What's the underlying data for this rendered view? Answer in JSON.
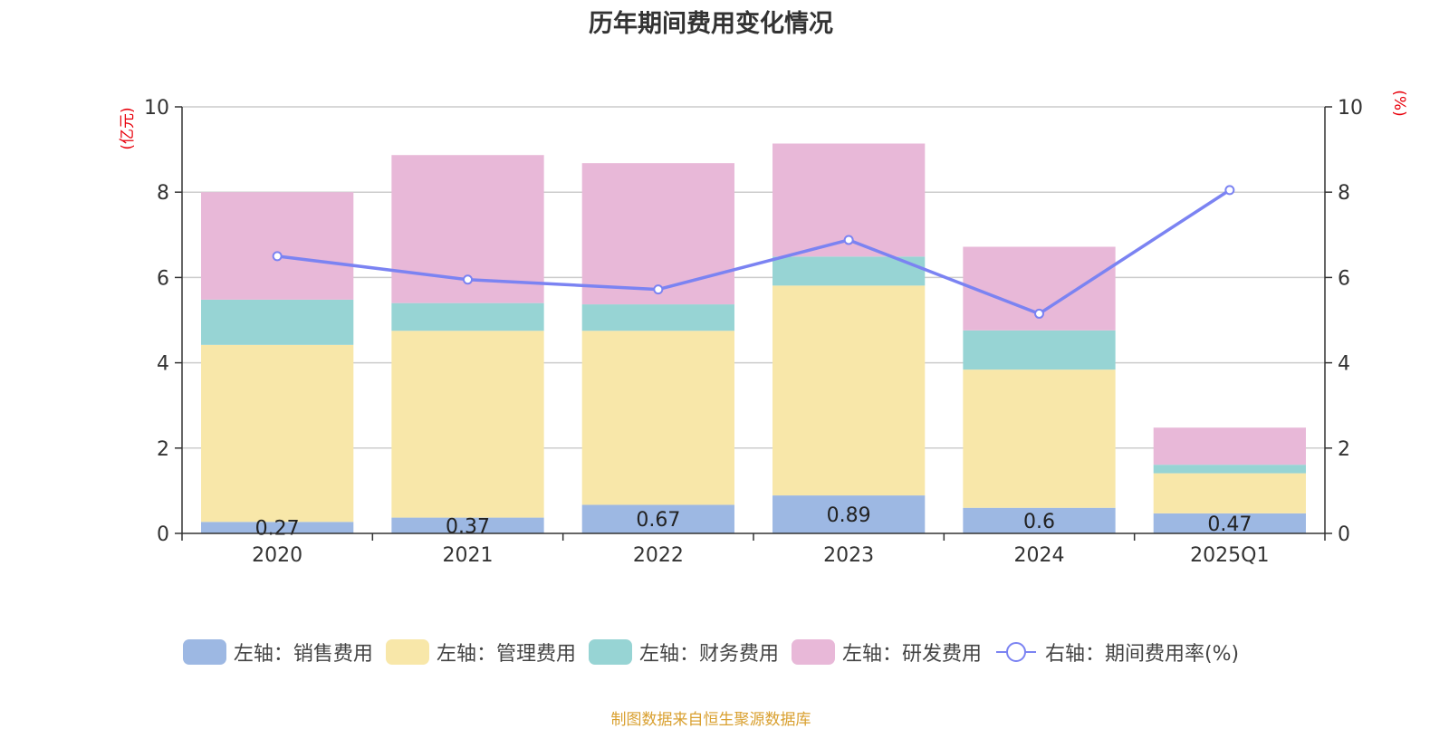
{
  "title": "历年期间费用变化情况",
  "source": "制图数据来自恒生聚源数据库",
  "colors": {
    "sales": "#9db8e3",
    "admin": "#f8e7a9",
    "finance": "#97d4d4",
    "rnd": "#e8b8d8",
    "rate": "#7b83f2",
    "axis_unit": "#e8000b"
  },
  "chart_data": {
    "type": "bar",
    "stacked": true,
    "categories": [
      "2020",
      "2021",
      "2022",
      "2023",
      "2024",
      "2025Q1"
    ],
    "left_axis": {
      "unit": "(亿元)",
      "ylim": [
        0,
        10
      ],
      "ticks": [
        0,
        2,
        4,
        6,
        8,
        10
      ]
    },
    "right_axis": {
      "unit": "(%)",
      "ylim": [
        0,
        10
      ],
      "ticks": [
        0,
        2,
        4,
        6,
        8,
        10
      ]
    },
    "series": [
      {
        "name": "左轴：销售费用",
        "key": "sales",
        "values": [
          0.27,
          0.37,
          0.67,
          0.89,
          0.6,
          0.47
        ],
        "data_labels": [
          "0.27",
          "0.37",
          "0.67",
          "0.89",
          "0.6",
          "0.47"
        ]
      },
      {
        "name": "左轴：管理费用",
        "key": "admin",
        "values": [
          4.15,
          4.38,
          4.08,
          4.92,
          3.24,
          0.94
        ]
      },
      {
        "name": "左轴：财务费用",
        "key": "finance",
        "values": [
          1.06,
          0.65,
          0.62,
          0.68,
          0.92,
          0.2
        ]
      },
      {
        "name": "左轴：研发费用",
        "key": "rnd",
        "values": [
          2.52,
          3.47,
          3.31,
          2.65,
          1.96,
          0.87
        ]
      }
    ],
    "line_series": {
      "name": "右轴：期间费用率(%)",
      "key": "rate",
      "values": [
        6.5,
        5.95,
        5.72,
        6.88,
        5.15,
        8.05
      ]
    },
    "grid": true,
    "legend_position": "bottom"
  }
}
